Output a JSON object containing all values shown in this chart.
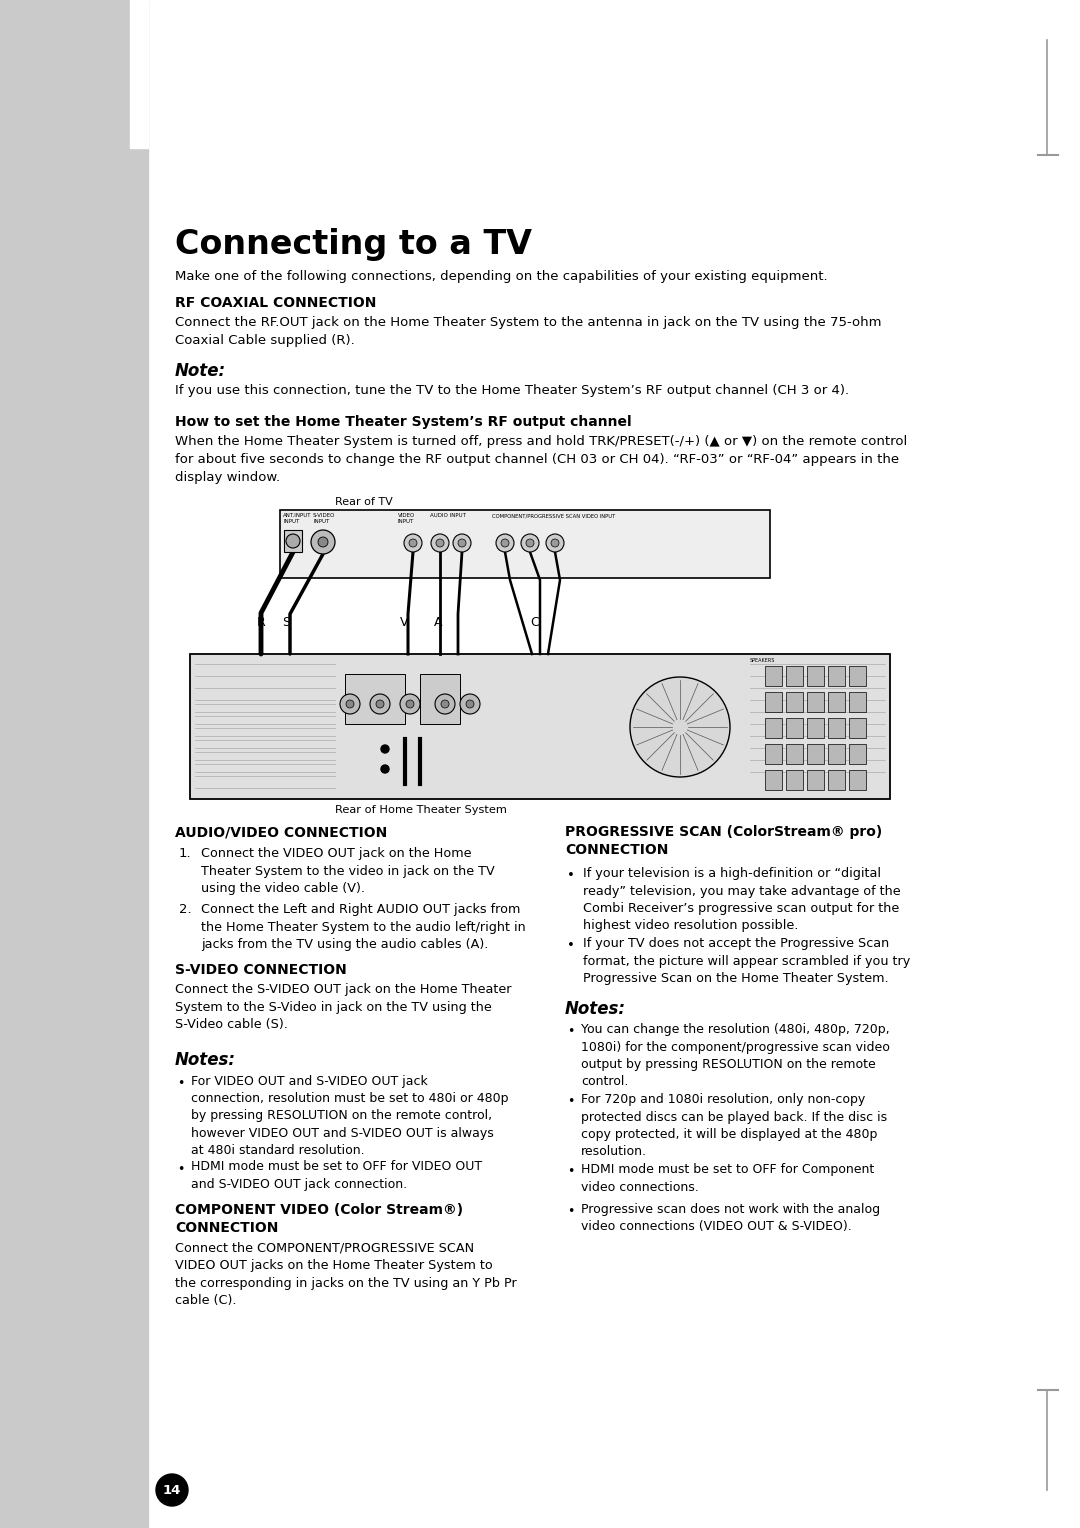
{
  "title": "Connecting to a TV",
  "bg_color": "#ffffff",
  "sidebar_color": "#c8c8c8",
  "page_number": "14",
  "sections": {
    "intro": "Make one of the following connections, depending on the capabilities of your existing equipment.",
    "rf_heading": "RF COAXIAL CONNECTION",
    "rf_body": "Connect the RF.OUT jack on the Home Theater System to the antenna in jack on the TV using the 75-ohm\nCoaxial Cable supplied (R).",
    "note_label": "Note:",
    "note_body": "If you use this connection, tune the TV to the Home Theater System’s RF output channel (CH 3 or 4).",
    "howto_heading": "How to set the Home Theater System’s RF output channel",
    "howto_body": "When the Home Theater System is turned off, press and hold TRK/PRESET(-/+) (▲ or ▼) on the remote control\nfor about five seconds to change the RF output channel (CH 03 or CH 04). “RF-03” or “RF-04” appears in the\ndisplay window.",
    "rear_tv_label": "Rear of TV",
    "rear_hts_label": "Rear of Home Theater System",
    "av_heading": "AUDIO/VIDEO CONNECTION",
    "av_item1_num": "1.",
    "av_item1": "Connect the VIDEO OUT jack on the Home\nTheater System to the video in jack on the TV\nusing the video cable (V).",
    "av_item2_num": "2.",
    "av_item2": "Connect the Left and Right AUDIO OUT jacks from\nthe Home Theater System to the audio left/right in\njacks from the TV using the audio cables (A).",
    "svideo_heading": "S-VIDEO CONNECTION",
    "svideo_body": "Connect the S-VIDEO OUT jack on the Home Theater\nSystem to the S-Video in jack on the TV using the\nS-Video cable (S).",
    "notes_left_label": "Notes:",
    "notes_left": [
      "For VIDEO OUT and S-VIDEO OUT jack\nconnection, resolution must be set to 480i or 480p\nby pressing RESOLUTION on the remote control,\nhowever VIDEO OUT and S-VIDEO OUT is always\nat 480i standard resolution.",
      "HDMI mode must be set to OFF for VIDEO OUT\nand S-VIDEO OUT jack connection."
    ],
    "component_heading1": "COMPONENT VIDEO (Color Stream®)",
    "component_heading2": "CONNECTION",
    "component_body": "Connect the COMPONENT/PROGRESSIVE SCAN\nVIDEO OUT jacks on the Home Theater System to\nthe corresponding in jacks on the TV using an Y Pb Pr\ncable (C).",
    "progressive_heading1": "PROGRESSIVE SCAN (ColorStream® pro)",
    "progressive_heading2": "CONNECTION",
    "progressive_body1": "If your television is a high-definition or “digital\nready” television, you may take advantage of the\nCombi Receiver’s progressive scan output for the\nhighest video resolution possible.",
    "progressive_body2": "If your TV does not accept the Progressive Scan\nformat, the picture will appear scrambled if you try\nProgressive Scan on the Home Theater System.",
    "notes_right_label": "Notes:",
    "notes_right": [
      "You can change the resolution (480i, 480p, 720p,\n1080i) for the component/progressive scan video\noutput by pressing RESOLUTION on the remote\ncontrol.",
      "For 720p and 1080i resolution, only non-copy\nprotected discs can be played back. If the disc is\ncopy protected, it will be displayed at the 480p\nresolution.",
      "HDMI mode must be set to OFF for Component\nvideo connections.",
      "Progressive scan does not work with the analog\nvideo connections (VIDEO OUT & S-VIDEO)."
    ]
  }
}
